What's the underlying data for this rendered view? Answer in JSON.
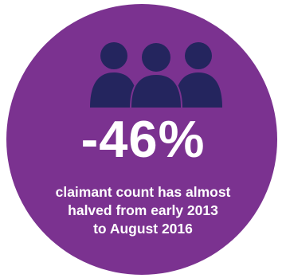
{
  "infographic": {
    "icon": "people-group-icon",
    "stat_value": "-46%",
    "caption_lines": [
      "claimant count has almost",
      "halved from early 2013",
      "to August 2016"
    ]
  },
  "colors": {
    "circle": "#7b3290",
    "icon": "#24255e",
    "text": "#ffffff"
  }
}
